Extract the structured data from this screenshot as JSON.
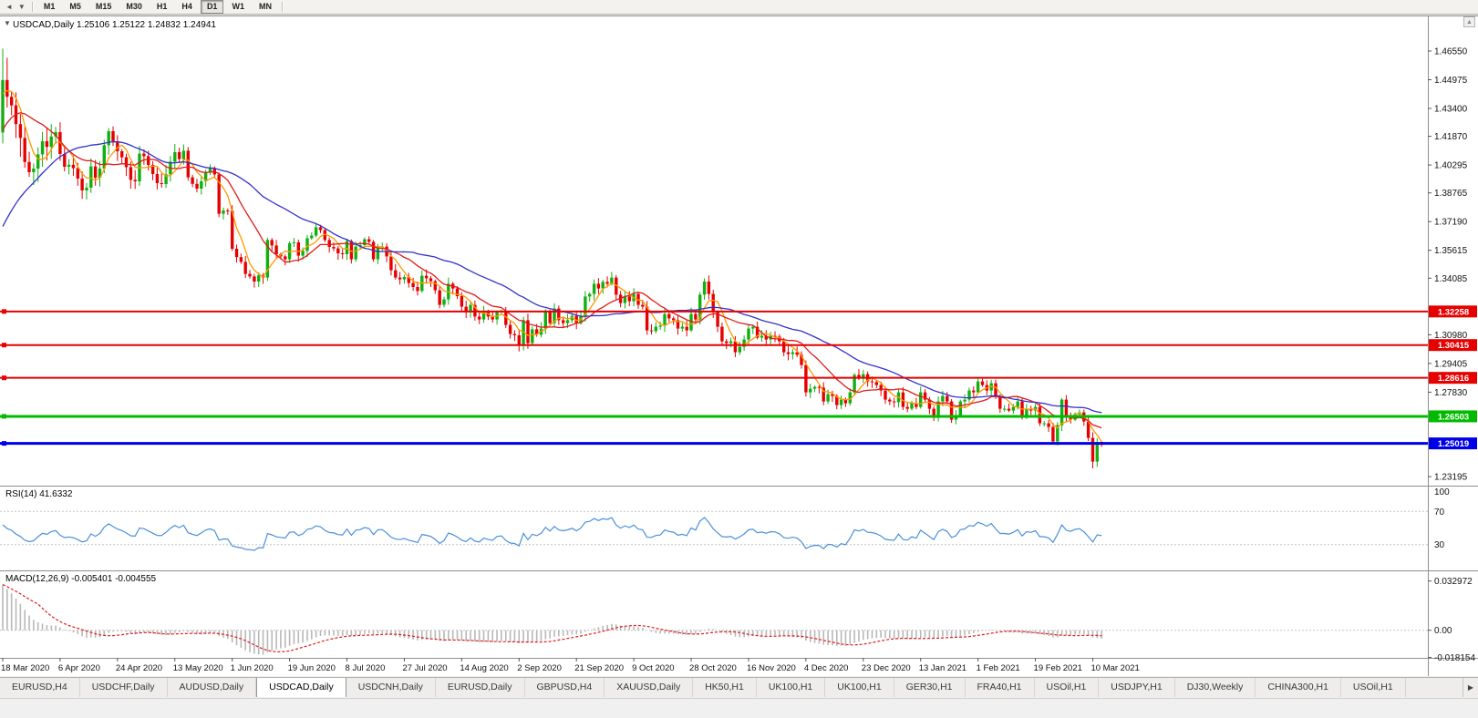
{
  "icons": {
    "toolbar_back": "◄",
    "toolbar_dropdown": "▼",
    "collapse": "▼",
    "scroll_up": "▲",
    "tab_scroll_right": "▶"
  },
  "toolbar": {
    "active": "D1",
    "periods": [
      {
        "label": "M1"
      },
      {
        "label": "M5"
      },
      {
        "label": "M15"
      },
      {
        "label": "M30"
      },
      {
        "label": "H1"
      },
      {
        "label": "H4"
      },
      {
        "label": "D1"
      },
      {
        "label": "W1"
      },
      {
        "label": "MN"
      }
    ]
  },
  "chart_header": {
    "title": "USDCAD,Daily",
    "quote": "1.25106 1.25122 1.24832 1.24941"
  },
  "chart_data": {
    "type": "candlestick",
    "symbol": "USDCAD",
    "timeframe": "Daily",
    "up_color": "#10b010",
    "down_color": "#e60000",
    "quote": {
      "open": "1.25106",
      "high": "1.25122",
      "low": "1.24832",
      "close": "1.24941"
    },
    "y_axis": {
      "ticks": [
        {
          "label": "1.46550",
          "value": 1.4655
        },
        {
          "label": "1.44975",
          "value": 1.44975
        },
        {
          "label": "1.43400",
          "value": 1.434
        },
        {
          "label": "1.41870",
          "value": 1.4187
        },
        {
          "label": "1.40295",
          "value": 1.40295
        },
        {
          "label": "1.38765",
          "value": 1.38765
        },
        {
          "label": "1.37190",
          "value": 1.3719
        },
        {
          "label": "1.35615",
          "value": 1.35615
        },
        {
          "label": "1.34085",
          "value": 1.34085
        },
        {
          "label": "1.30980",
          "value": 1.3098
        },
        {
          "label": "1.29405",
          "value": 1.29405
        },
        {
          "label": "1.27830",
          "value": 1.2783
        },
        {
          "label": "1.23195",
          "value": 1.23195
        }
      ]
    },
    "x_axis": {
      "labels": [
        {
          "label": "18 Mar 2020",
          "index": 0
        },
        {
          "label": "6 Apr 2020",
          "index": 13
        },
        {
          "label": "24 Apr 2020",
          "index": 26
        },
        {
          "label": "13 May 2020",
          "index": 39
        },
        {
          "label": "1 Jun 2020",
          "index": 52
        },
        {
          "label": "19 Jun 2020",
          "index": 65
        },
        {
          "label": "8 Jul 2020",
          "index": 78
        },
        {
          "label": "27 Jul 2020",
          "index": 91
        },
        {
          "label": "14 Aug 2020",
          "index": 104
        },
        {
          "label": "2 Sep 2020",
          "index": 117
        },
        {
          "label": "21 Sep 2020",
          "index": 130
        },
        {
          "label": "9 Oct 2020",
          "index": 143
        },
        {
          "label": "28 Oct 2020",
          "index": 156
        },
        {
          "label": "16 Nov 2020",
          "index": 169
        },
        {
          "label": "4 Dec 2020",
          "index": 182
        },
        {
          "label": "23 Dec 2020",
          "index": 195
        },
        {
          "label": "13 Jan 2021",
          "index": 208
        },
        {
          "label": "1 Feb 2021",
          "index": 221
        },
        {
          "label": "19 Feb 2021",
          "index": 234
        },
        {
          "label": "10 Mar 2021",
          "index": 247
        }
      ]
    },
    "closes": [
      1.4496,
      1.4404,
      1.4357,
      1.4254,
      1.4178,
      1.4046,
      1.399,
      1.401,
      1.4088,
      1.416,
      1.4129,
      1.4186,
      1.421,
      1.409,
      1.402,
      1.4031,
      1.4012,
      1.3955,
      1.389,
      1.3905,
      1.4022,
      1.396,
      1.401,
      1.4138,
      1.4215,
      1.416,
      1.4105,
      1.4072,
      1.4018,
      1.3948,
      1.394,
      1.4092,
      1.4078,
      1.403,
      1.398,
      1.393,
      1.3925,
      1.3978,
      1.4048,
      1.41,
      1.4062,
      1.4108,
      1.3962,
      1.3926,
      1.39,
      1.394,
      1.3988,
      1.401,
      1.3978,
      1.3762,
      1.378,
      1.3778,
      1.357,
      1.3524,
      1.3498,
      1.3432,
      1.3418,
      1.339,
      1.3424,
      1.3412,
      1.3618,
      1.3588,
      1.354,
      1.3528,
      1.3512,
      1.36,
      1.3605,
      1.3532,
      1.3558,
      1.3628,
      1.3642,
      1.3688,
      1.3672,
      1.3618,
      1.358,
      1.3572,
      1.3545,
      1.354,
      1.3612,
      1.3512,
      1.3582,
      1.359,
      1.3622,
      1.3608,
      1.3512,
      1.3578,
      1.3582,
      1.3528,
      1.3452,
      1.3412,
      1.3402,
      1.3415,
      1.3382,
      1.336,
      1.3338,
      1.3422,
      1.3408,
      1.3392,
      1.3342,
      1.3262,
      1.3292,
      1.3378,
      1.3352,
      1.331,
      1.3252,
      1.3222,
      1.3262,
      1.3198,
      1.3182,
      1.3222,
      1.3198,
      1.3182,
      1.3222,
      1.3228,
      1.3152,
      1.3102,
      1.3095,
      1.3042,
      1.3178,
      1.3052,
      1.3128,
      1.3098,
      1.3132,
      1.3228,
      1.3162,
      1.3242,
      1.3178,
      1.3162,
      1.3178,
      1.3202,
      1.3162,
      1.3202,
      1.3308,
      1.3322,
      1.3378,
      1.3352,
      1.3388,
      1.3378,
      1.3412,
      1.3318,
      1.3272,
      1.3308,
      1.3282,
      1.3322,
      1.3262,
      1.3252,
      1.3122,
      1.3118,
      1.3142,
      1.3148,
      1.3212,
      1.3188,
      1.3178,
      1.3132,
      1.3142,
      1.3122,
      1.3212,
      1.3182,
      1.3318,
      1.339,
      1.3322,
      1.3222,
      1.3142,
      1.3062,
      1.3052,
      1.3062,
      1.3002,
      1.3032,
      1.3072,
      1.3132,
      1.3142,
      1.3082,
      1.3092,
      1.3072,
      1.3092,
      1.3088,
      1.3062,
      1.3002,
      1.2992,
      1.3002,
      1.2988,
      1.2932,
      1.2782,
      1.2802,
      1.2812,
      1.2808,
      1.2732,
      1.2772,
      1.2762,
      1.2712,
      1.2742,
      1.2722,
      1.2782,
      1.2878,
      1.2862,
      1.2882,
      1.2842,
      1.2838,
      1.2822,
      1.2792,
      1.2742,
      1.2732,
      1.2728,
      1.2782,
      1.2702,
      1.2692,
      1.2722,
      1.2702,
      1.2782,
      1.2742,
      1.2692,
      1.2642,
      1.2732,
      1.2762,
      1.2732,
      1.2632,
      1.2652,
      1.2732,
      1.2742,
      1.2792,
      1.2782,
      1.2842,
      1.2822,
      1.2792,
      1.2832,
      1.2762,
      1.2692,
      1.2692,
      1.2682,
      1.2702,
      1.2732,
      1.2642,
      1.2692,
      1.2682,
      1.2702,
      1.2612,
      1.2612,
      1.2592,
      1.2512,
      1.2602,
      1.2742,
      1.2652,
      1.2632,
      1.2662,
      1.2672,
      1.2622,
      1.2532,
      1.2402,
      1.251,
      1.24941
    ],
    "overrides": {
      "0": {
        "open": 1.4208,
        "high": 1.4668,
        "low": 1.4148
      },
      "1": {
        "high": 1.4618
      },
      "240": {
        "high": 1.275
      },
      "247": {
        "low": 1.2365
      },
      "249": {
        "open": 1.25106,
        "high": 1.25122,
        "low": 1.24832,
        "close": 1.24941
      }
    },
    "moving_averages": [
      {
        "name": "ma-fast-line",
        "period": 5,
        "color": "#ff9900"
      },
      {
        "name": "ma-mid-line",
        "period": 13,
        "color": "#e21b1b"
      },
      {
        "name": "ma-slow-line",
        "period": 34,
        "color": "#3232cc"
      }
    ],
    "hlines": [
      {
        "label": "1.32258",
        "value": 1.32258,
        "color": "#e60000",
        "width": 2
      },
      {
        "label": "1.30415",
        "value": 1.30415,
        "color": "#e60000",
        "width": 2
      },
      {
        "label": "1.28616",
        "value": 1.28616,
        "color": "#e60000",
        "width": 2
      },
      {
        "label": "1.26503",
        "value": 1.26503,
        "color": "#00bb00",
        "width": 3
      },
      {
        "label": "1.25019",
        "value": 1.25019,
        "color": "#0000e6",
        "width": 3
      }
    ],
    "rsi": {
      "name": "RSI(14)",
      "value": "41.6332",
      "period": 14,
      "color": "#4a90d9",
      "levels": [
        {
          "label": "100",
          "value": 100
        },
        {
          "label": "70",
          "value": 70
        },
        {
          "label": "30",
          "value": 30
        }
      ]
    },
    "macd": {
      "name": "MACD(12,26,9)",
      "values": "-0.005401 -0.004555",
      "fast": 12,
      "slow": 26,
      "signal": 9,
      "hist_color": "#b8b8b8",
      "signal_color": "#e21b1b",
      "axis": [
        {
          "label": "0.032972",
          "value": 0.032972
        },
        {
          "label": "0.00",
          "value": 0
        },
        {
          "label": "-0.018154",
          "value": -0.018154
        }
      ]
    }
  },
  "tabs": {
    "items": [
      {
        "label": "EURUSD,H4"
      },
      {
        "label": "USDCHF,Daily"
      },
      {
        "label": "AUDUSD,Daily"
      },
      {
        "label": "USDCAD,Daily",
        "active": true
      },
      {
        "label": "USDCNH,Daily"
      },
      {
        "label": "EURUSD,Daily"
      },
      {
        "label": "GBPUSD,H4"
      },
      {
        "label": "XAUUSD,Daily"
      },
      {
        "label": "HK50,H1"
      },
      {
        "label": "UK100,H1"
      },
      {
        "label": "UK100,H1"
      },
      {
        "label": "GER30,H1"
      },
      {
        "label": "FRA40,H1"
      },
      {
        "label": "USOil,H1"
      },
      {
        "label": "USDJPY,H1"
      },
      {
        "label": "DJ30,Weekly"
      },
      {
        "label": "CHINA300,H1"
      },
      {
        "label": "USOil,H1"
      }
    ]
  }
}
